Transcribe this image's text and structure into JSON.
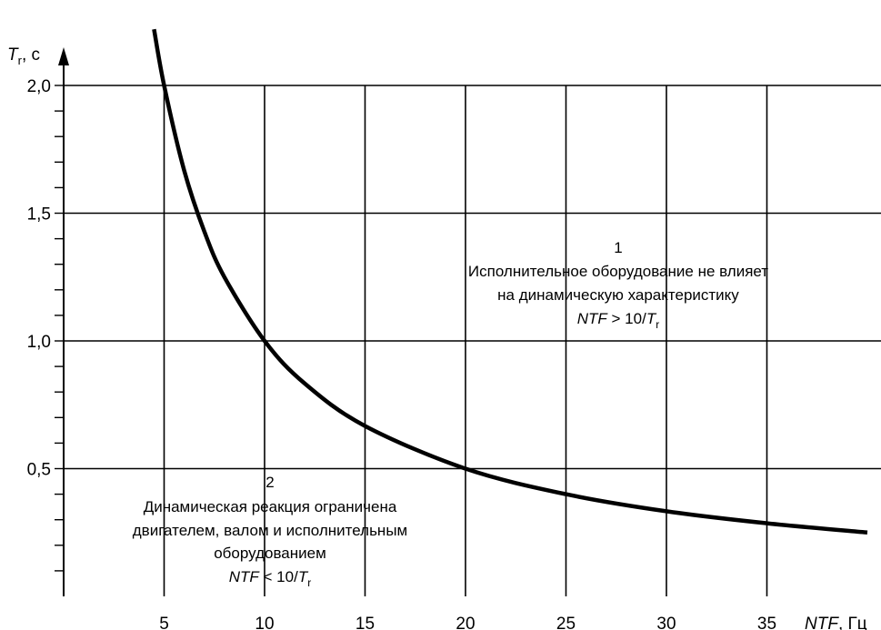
{
  "chart_data": {
    "type": "line",
    "xlabel": {
      "var": "NTF",
      "unit": ", Гц"
    },
    "ylabel": {
      "var": "T",
      "sub": "r",
      "unit": ", с"
    },
    "xlim": [
      0,
      35
    ],
    "ylim": [
      0,
      2.0
    ],
    "x_ticks": [
      5,
      10,
      15,
      20,
      25,
      30,
      35
    ],
    "x_tick_labels": [
      "5",
      "10",
      "15",
      "20",
      "25",
      "30",
      "35"
    ],
    "y_ticks": [
      0.5,
      1.0,
      1.5,
      2.0
    ],
    "y_tick_labels": [
      "0,5",
      "1,0",
      "1,5",
      "2,0"
    ],
    "grid": true,
    "series": [
      {
        "formula": "T_r = 10 / NTF",
        "x": [
          4.5,
          5,
          6,
          7,
          8,
          10,
          12,
          15,
          20,
          25,
          30,
          35,
          40
        ],
        "y": [
          2.22,
          2.0,
          1.667,
          1.429,
          1.25,
          1.0,
          0.833,
          0.667,
          0.5,
          0.4,
          0.333,
          0.286,
          0.25
        ]
      }
    ],
    "annotations": [
      {
        "number": "1",
        "lines": [
          "Исполнительное оборудование не влияет",
          "на динамическую характеристику"
        ],
        "formula": {
          "var": "NTF",
          "op": " > 10/",
          "tvar": "T",
          "sub": "r"
        }
      },
      {
        "number": "2",
        "lines": [
          "Динамическая реакция ограничена",
          "двигателем, валом и исполнительным",
          "оборудованием"
        ],
        "formula": {
          "var": "NTF",
          "op": " < 10/",
          "tvar": "T",
          "sub": "r"
        }
      }
    ]
  }
}
